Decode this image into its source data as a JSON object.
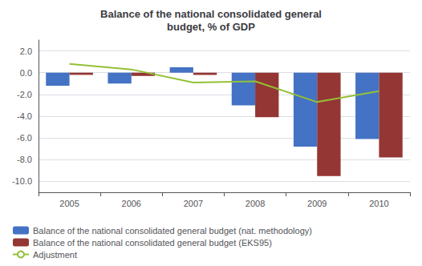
{
  "chart_data": {
    "type": "bar",
    "title": "Balance of the national consolidated general\nbudget, % of GDP",
    "categories": [
      "2005",
      "2006",
      "2007",
      "2008",
      "2009",
      "2010"
    ],
    "series": [
      {
        "name": "Balance of the national consolidated general budget (nat. methodology)",
        "type": "bar",
        "color": "#4472C4",
        "values": [
          -1.2,
          -1.0,
          0.5,
          -3.0,
          -6.8,
          -6.1
        ]
      },
      {
        "name": "Balance of the national consolidated general budget (EKS95)",
        "type": "bar",
        "color": "#943634",
        "values": [
          -0.2,
          -0.3,
          -0.2,
          -4.1,
          -9.5,
          -7.8
        ]
      },
      {
        "name": "Adjustment",
        "type": "line",
        "color": "#93C036",
        "values": [
          0.8,
          0.3,
          -0.9,
          -0.8,
          -2.7,
          -1.7
        ]
      }
    ],
    "ylim": [
      -11,
      3
    ],
    "yticks": [
      {
        "value": 2.0,
        "label": "2.0"
      },
      {
        "value": 0.0,
        "label": "0.0"
      },
      {
        "value": -2.0,
        "label": "-2.0"
      },
      {
        "value": -4.0,
        "label": "-4.0"
      },
      {
        "value": -6.0,
        "label": "-6.0"
      },
      {
        "value": -8.0,
        "label": "-8.0"
      },
      {
        "value": -10.0,
        "label": "-10.0"
      }
    ],
    "grid": true,
    "legend": "bottom"
  }
}
